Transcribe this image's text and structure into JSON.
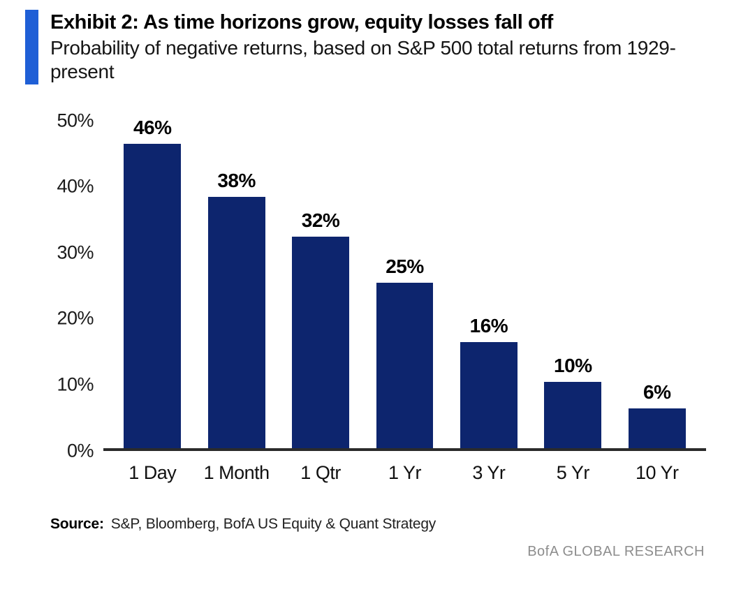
{
  "header": {
    "title": "Exhibit 2: As time horizons grow, equity losses fall off",
    "subtitle": "Probability of negative returns, based on S&P 500 total returns from 1929-present"
  },
  "chart_data": {
    "type": "bar",
    "title": "Probability of negative returns, based on S&P 500 total returns from 1929-present",
    "categories": [
      "1 Day",
      "1 Month",
      "1 Qtr",
      "1 Yr",
      "3 Yr",
      "5 Yr",
      "10 Yr"
    ],
    "values": [
      46,
      38,
      32,
      25,
      16,
      10,
      6
    ],
    "value_labels": [
      "46%",
      "38%",
      "32%",
      "25%",
      "16%",
      "10%",
      "6%"
    ],
    "xlabel": "",
    "ylabel": "",
    "ylim": [
      0,
      50
    ],
    "ytick_step": 10,
    "ytick_labels": [
      "50%",
      "40%",
      "30%",
      "20%",
      "10%",
      "0%"
    ],
    "grid": false,
    "legend": "none",
    "bar_color": "#0D256E"
  },
  "footer": {
    "source_label": "Source:",
    "source_text": "S&P, Bloomberg, BofA US Equity & Quant Strategy",
    "branding": "BofA GLOBAL RESEARCH"
  },
  "colors": {
    "accent_bar": "#1F5FD6",
    "bar": "#0D256E",
    "axis_line": "#2b2b2b",
    "branding_text": "#8d8d8d"
  }
}
